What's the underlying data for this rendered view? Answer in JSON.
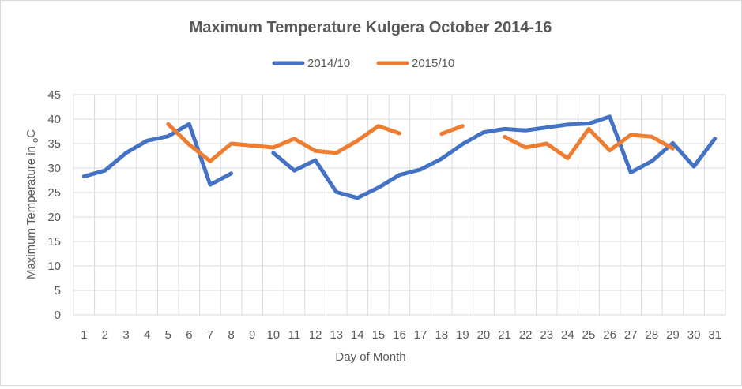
{
  "chart_data": {
    "type": "line",
    "title": "Maximum Temperature Kulgera October 2014-16",
    "xlabel": "Day of Month",
    "ylabel": "Maximum Temperature in ",
    "ylabel_subscript": "o",
    "ylabel_unit": "C",
    "ylim": [
      0,
      45
    ],
    "yticks": [
      0,
      5,
      10,
      15,
      20,
      25,
      30,
      35,
      40,
      45
    ],
    "categories": [
      1,
      2,
      3,
      4,
      5,
      6,
      7,
      8,
      9,
      10,
      11,
      12,
      13,
      14,
      15,
      16,
      17,
      18,
      19,
      20,
      21,
      22,
      23,
      24,
      25,
      26,
      27,
      28,
      29,
      30,
      31
    ],
    "grid": true,
    "legend_position": "top",
    "series": [
      {
        "name": "2014/10",
        "color": "#4472c4",
        "values": [
          28.3,
          29.5,
          33.1,
          35.6,
          36.5,
          39.0,
          26.6,
          28.9,
          null,
          33.1,
          29.5,
          31.6,
          25.1,
          23.9,
          26.0,
          28.6,
          29.7,
          31.9,
          34.9,
          37.3,
          38.0,
          37.7,
          38.3,
          38.9,
          39.1,
          40.5,
          29.1,
          31.4,
          35.1,
          30.3,
          36.0
        ]
      },
      {
        "name": "2015/10",
        "color": "#ed7d31",
        "values": [
          null,
          null,
          null,
          null,
          39.0,
          34.8,
          31.4,
          35.0,
          34.6,
          34.2,
          36.0,
          33.5,
          33.1,
          35.6,
          38.6,
          37.1,
          null,
          37.0,
          38.6,
          null,
          36.4,
          34.2,
          35.0,
          32.0,
          38.0,
          33.6,
          36.8,
          36.4,
          34.0,
          null,
          null
        ]
      }
    ]
  }
}
